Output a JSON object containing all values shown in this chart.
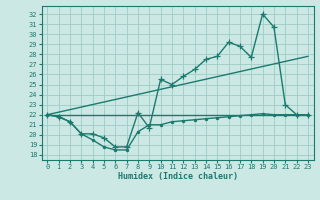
{
  "xlabel": "Humidex (Indice chaleur)",
  "bg_color": "#cce8e4",
  "grid_color": "#9eccc6",
  "line_color": "#1a7a6e",
  "xlim": [
    -0.5,
    23.5
  ],
  "ylim": [
    17.5,
    32.8
  ],
  "xticks": [
    0,
    1,
    2,
    3,
    4,
    5,
    6,
    7,
    8,
    9,
    10,
    11,
    12,
    13,
    14,
    15,
    16,
    17,
    18,
    19,
    20,
    21,
    22,
    23
  ],
  "yticks": [
    18,
    19,
    20,
    21,
    22,
    23,
    24,
    25,
    26,
    27,
    28,
    29,
    30,
    31,
    32
  ],
  "line1_x": [
    0,
    1,
    2,
    3,
    4,
    5,
    6,
    7,
    8,
    9,
    10,
    11,
    12,
    13,
    14,
    15,
    16,
    17,
    18,
    19,
    20,
    21,
    22,
    23
  ],
  "line1_y": [
    22.0,
    21.8,
    21.3,
    20.1,
    19.5,
    18.8,
    18.5,
    18.5,
    20.3,
    21.0,
    21.0,
    21.3,
    21.4,
    21.5,
    21.6,
    21.7,
    21.8,
    21.9,
    22.0,
    22.1,
    22.0,
    22.0,
    22.0,
    22.0
  ],
  "line2_x": [
    0,
    1,
    2,
    3,
    4,
    5,
    6,
    7,
    8,
    9,
    10,
    11,
    12,
    13,
    14,
    15,
    16,
    17,
    18,
    19,
    20,
    21,
    22,
    23
  ],
  "line2_y": [
    22.0,
    21.8,
    21.3,
    20.1,
    20.1,
    19.7,
    18.8,
    18.8,
    22.2,
    20.7,
    25.5,
    25.0,
    25.8,
    26.5,
    27.5,
    27.8,
    29.2,
    28.8,
    27.7,
    32.0,
    30.7,
    23.0,
    22.0,
    22.0
  ],
  "line3_x": [
    0,
    23
  ],
  "line3_y": [
    22.0,
    27.8
  ],
  "line4_x": [
    0,
    23
  ],
  "line4_y": [
    22.0,
    22.0
  ],
  "marker_size": 2.5,
  "line_width": 1.0
}
